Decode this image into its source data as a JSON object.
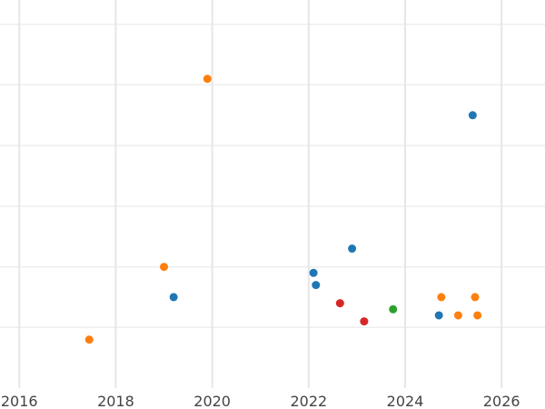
{
  "chart_data": {
    "type": "scatter",
    "title": "",
    "xlabel": "",
    "ylabel": "",
    "grid": true,
    "xlim": [
      2015.6,
      2026.9
    ],
    "ylim": [
      0,
      6.4
    ],
    "x_ticks": [
      2016,
      2018,
      2020,
      2022,
      2024,
      2026
    ],
    "y_gridlines": [
      1,
      2,
      3,
      4,
      5,
      6
    ],
    "series": [
      {
        "color": "#1f77b4",
        "points": [
          {
            "x": 2019.2,
            "y": 1.5
          },
          {
            "x": 2022.1,
            "y": 1.9
          },
          {
            "x": 2022.15,
            "y": 1.7
          },
          {
            "x": 2022.9,
            "y": 2.3
          },
          {
            "x": 2024.7,
            "y": 1.2
          },
          {
            "x": 2025.4,
            "y": 4.5
          }
        ]
      },
      {
        "color": "#ff7f0e",
        "points": [
          {
            "x": 2017.45,
            "y": 0.8
          },
          {
            "x": 2019.0,
            "y": 2.0
          },
          {
            "x": 2019.9,
            "y": 5.1
          },
          {
            "x": 2024.75,
            "y": 1.5
          },
          {
            "x": 2025.1,
            "y": 1.2
          },
          {
            "x": 2025.45,
            "y": 1.5
          },
          {
            "x": 2025.5,
            "y": 1.2
          }
        ]
      },
      {
        "color": "#2ca02c",
        "points": [
          {
            "x": 2023.75,
            "y": 1.3
          }
        ]
      },
      {
        "color": "#d62728",
        "points": [
          {
            "x": 2022.65,
            "y": 1.4
          },
          {
            "x": 2023.15,
            "y": 1.1
          }
        ]
      }
    ]
  }
}
